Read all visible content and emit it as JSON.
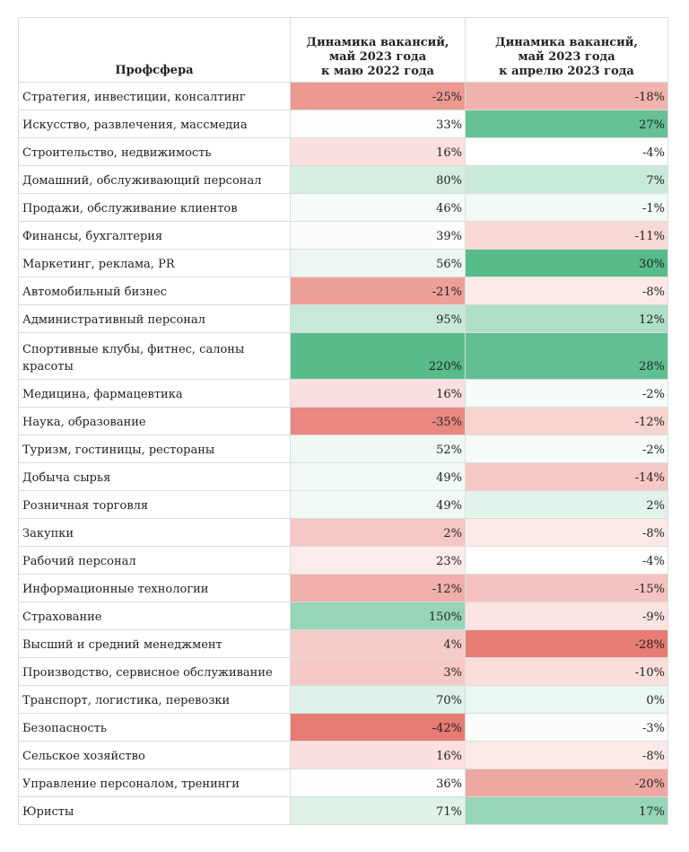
{
  "chart_data": {
    "type": "table",
    "columns": [
      "Профсфера",
      "Динамика вакансий,\nмай 2023 года\nк маю 2022 года",
      "Динамика вакансий,\nмай 2023 года\nк апрелю 2023 года"
    ],
    "rows": [
      {
        "name": "Стратегия, инвестиции, консалтинг",
        "yoy": "-25%",
        "mom": "-18%"
      },
      {
        "name": "Искусство, развлечения, массмедиа",
        "yoy": "33%",
        "mom": "27%"
      },
      {
        "name": "Строительство, недвижимость",
        "yoy": "16%",
        "mom": "-4%"
      },
      {
        "name": "Домашний, обслуживающий персонал",
        "yoy": "80%",
        "mom": "7%"
      },
      {
        "name": "Продажи, обслуживание клиентов",
        "yoy": "46%",
        "mom": "-1%"
      },
      {
        "name": "Финансы, бухгалтерия",
        "yoy": "39%",
        "mom": "-11%"
      },
      {
        "name": "Маркетинг, реклама, PR",
        "yoy": "56%",
        "mom": "30%"
      },
      {
        "name": "Автомобильный бизнес",
        "yoy": "-21%",
        "mom": "-8%"
      },
      {
        "name": "Административный персонал",
        "yoy": "95%",
        "mom": "12%"
      },
      {
        "name": "Спортивные клубы, фитнес, салоны красоты",
        "yoy": "220%",
        "mom": "28%"
      },
      {
        "name": "Медицина, фармацевтика",
        "yoy": "16%",
        "mom": "-2%"
      },
      {
        "name": "Наука, образование",
        "yoy": "-35%",
        "mom": "-12%"
      },
      {
        "name": "Туризм, гостиницы, рестораны",
        "yoy": "52%",
        "mom": "-2%"
      },
      {
        "name": "Добыча сырья",
        "yoy": "49%",
        "mom": "-14%"
      },
      {
        "name": "Розничная торговля",
        "yoy": "49%",
        "mom": "2%"
      },
      {
        "name": "Закупки",
        "yoy": "2%",
        "mom": "-8%"
      },
      {
        "name": "Рабочий персонал",
        "yoy": "23%",
        "mom": "-4%"
      },
      {
        "name": "Информационные технологии",
        "yoy": "-12%",
        "mom": "-15%"
      },
      {
        "name": "Страхование",
        "yoy": "150%",
        "mom": "-9%"
      },
      {
        "name": "Высший и средний менеджмент",
        "yoy": "4%",
        "mom": "-28%"
      },
      {
        "name": "Производство, сервисное обслуживание",
        "yoy": "3%",
        "mom": "-10%"
      },
      {
        "name": "Транспорт, логистика, перевозки",
        "yoy": "70%",
        "mom": "0%"
      },
      {
        "name": "Безопасность",
        "yoy": "-42%",
        "mom": "-3%"
      },
      {
        "name": "Сельское хозяйство",
        "yoy": "16%",
        "mom": "-8%"
      },
      {
        "name": "Управление персоналом, тренинги",
        "yoy": "36%",
        "mom": "-20%"
      },
      {
        "name": "Юристы",
        "yoy": "71%",
        "mom": "17%"
      }
    ],
    "color_scale": {
      "negative": "#e67c73",
      "neutral": "#ffffff",
      "positive": "#57bb8a"
    }
  }
}
